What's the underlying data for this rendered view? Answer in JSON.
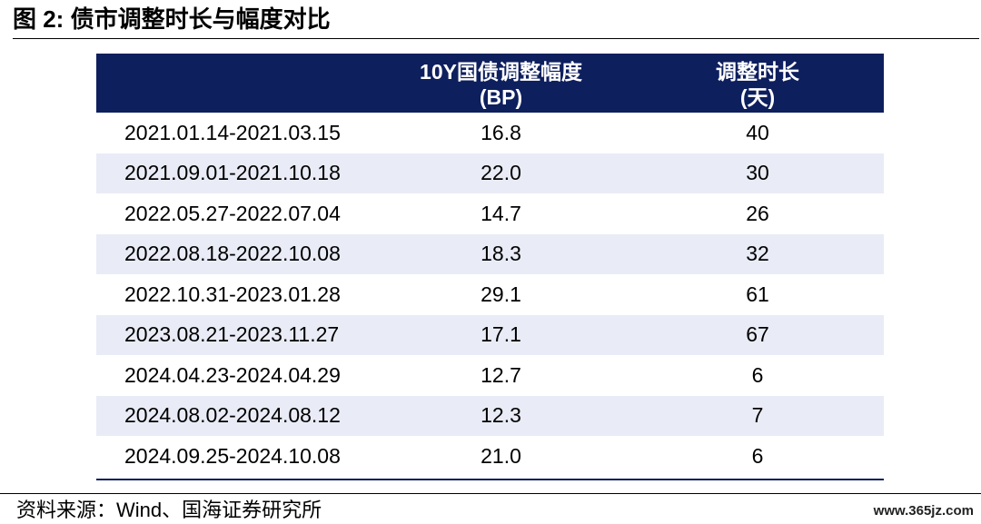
{
  "title": "图 2:  债市调整时长与幅度对比",
  "table": {
    "headers": [
      {
        "line1": "",
        "line2": ""
      },
      {
        "line1": "10Y国债调整幅度",
        "line2": "(BP)"
      },
      {
        "line1": "调整时长",
        "line2": "(天)"
      }
    ],
    "rows": [
      {
        "period": "2021.01.14-2021.03.15",
        "bp": "16.8",
        "days": "40"
      },
      {
        "period": "2021.09.01-2021.10.18",
        "bp": "22.0",
        "days": "30"
      },
      {
        "period": "2022.05.27-2022.07.04",
        "bp": "14.7",
        "days": "26"
      },
      {
        "period": "2022.08.18-2022.10.08",
        "bp": "18.3",
        "days": "32"
      },
      {
        "period": "2022.10.31-2023.01.28",
        "bp": "29.1",
        "days": "61"
      },
      {
        "period": "2023.08.21-2023.11.27",
        "bp": "17.1",
        "days": "67"
      },
      {
        "period": "2024.04.23-2024.04.29",
        "bp": "12.7",
        "days": "6"
      },
      {
        "period": "2024.08.02-2024.08.12",
        "bp": "12.3",
        "days": "7"
      },
      {
        "period": "2024.09.25-2024.10.08",
        "bp": "21.0",
        "days": "6"
      }
    ]
  },
  "source": "资料来源：Wind、国海证券研究所",
  "watermark": "www.365jz.com",
  "colors": {
    "header_bg": "#0e1f5e",
    "stripe_bg": "#e9ecf6"
  }
}
